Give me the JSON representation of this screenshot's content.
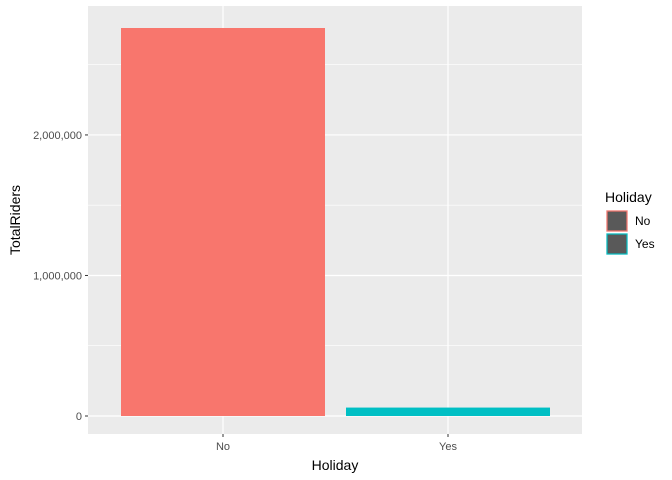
{
  "chart_data": {
    "type": "bar",
    "categories": [
      "No",
      "Yes"
    ],
    "values": [
      2761000,
      60000
    ],
    "xlabel": "Holiday",
    "ylabel": "TotalRiders",
    "ylim": [
      0,
      2900000
    ],
    "y_ticks": [
      0,
      1000000,
      2000000
    ],
    "y_tick_labels": [
      "0",
      "1,000,000",
      "2,000,000"
    ],
    "grid": true,
    "legend": {
      "title": "Holiday",
      "placement": "right",
      "entries": [
        "No",
        "Yes"
      ]
    },
    "colors": {
      "No": "#F8766D",
      "Yes": "#00BFC4",
      "panel_background": "#EBEBEB",
      "grid_line": "#FFFFFF",
      "legend_key_fill": "#595959"
    }
  }
}
